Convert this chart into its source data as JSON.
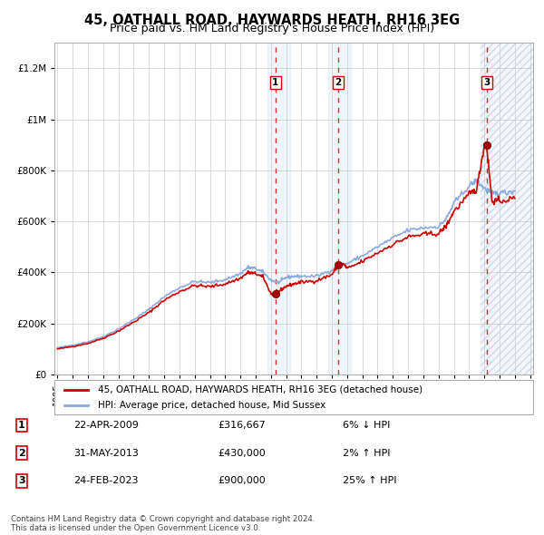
{
  "title": "45, OATHALL ROAD, HAYWARDS HEATH, RH16 3EG",
  "subtitle": "Price paid vs. HM Land Registry's House Price Index (HPI)",
  "title_fontsize": 10.5,
  "subtitle_fontsize": 9,
  "bg_color": "#ffffff",
  "plot_bg_color": "#ffffff",
  "grid_color": "#cccccc",
  "hpi_color": "#88aadd",
  "price_color": "#cc0000",
  "ylim": [
    0,
    1300000
  ],
  "xlim_start": 1994.8,
  "xlim_end": 2026.2,
  "sale_dates": [
    2009.3,
    2013.42,
    2023.15
  ],
  "sale_prices": [
    316667,
    430000,
    900000
  ],
  "sale_labels": [
    "1",
    "2",
    "3"
  ],
  "sale_info": [
    {
      "label": "1",
      "date": "22-APR-2009",
      "price": "£316,667",
      "diff": "6% ↓ HPI"
    },
    {
      "label": "2",
      "date": "31-MAY-2013",
      "price": "£430,000",
      "diff": "2% ↑ HPI"
    },
    {
      "label": "3",
      "date": "24-FEB-2023",
      "price": "£900,000",
      "diff": "25% ↑ HPI"
    }
  ],
  "legend_entries": [
    {
      "label": "45, OATHALL ROAD, HAYWARDS HEATH, RH16 3EG (detached house)",
      "color": "#cc0000"
    },
    {
      "label": "HPI: Average price, detached house, Mid Sussex",
      "color": "#88aadd"
    }
  ],
  "footer": "Contains HM Land Registry data © Crown copyright and database right 2024.\nThis data is licensed under the Open Government Licence v3.0.",
  "shade_regions": [
    {
      "x_start": 2008.75,
      "x_end": 2010.25,
      "hatch": false
    },
    {
      "x_start": 2012.75,
      "x_end": 2014.25,
      "hatch": false
    },
    {
      "x_start": 2022.75,
      "x_end": 2026.2,
      "hatch": true
    }
  ]
}
